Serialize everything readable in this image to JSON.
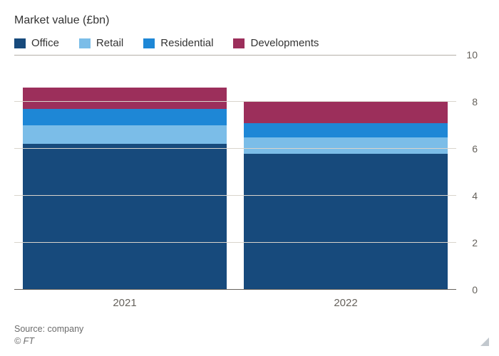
{
  "subtitle": "Market value (£bn)",
  "legend": [
    {
      "label": "Office",
      "color": "#174a7c"
    },
    {
      "label": "Retail",
      "color": "#7bbde8"
    },
    {
      "label": "Residential",
      "color": "#1e87d6"
    },
    {
      "label": "Developments",
      "color": "#9c2f5b"
    }
  ],
  "chart": {
    "type": "stacked-bar",
    "ylabel_unit": "£bn",
    "ylim": [
      0,
      10
    ],
    "ytick_step": 2,
    "yticks": [
      0,
      2,
      4,
      6,
      8,
      10
    ],
    "grid_color": "#d9d4cc",
    "baseline_color": "#66625c",
    "background_color": "#ffffff",
    "bar_width_pct": 92,
    "categories": [
      "2021",
      "2022"
    ],
    "series_order": [
      "Office",
      "Retail",
      "Residential",
      "Developments"
    ],
    "series_colors": {
      "Office": "#174a7c",
      "Retail": "#7bbde8",
      "Residential": "#1e87d6",
      "Developments": "#9c2f5b"
    },
    "data": {
      "2021": {
        "Office": 6.2,
        "Retail": 0.8,
        "Residential": 0.7,
        "Developments": 0.9
      },
      "2022": {
        "Office": 5.8,
        "Retail": 0.7,
        "Residential": 0.6,
        "Developments": 0.9
      }
    },
    "label_fontsize": 15,
    "tick_fontsize": 14,
    "subtitle_fontsize": 16
  },
  "footer": {
    "source": "Source: company",
    "copyright": "© FT"
  }
}
